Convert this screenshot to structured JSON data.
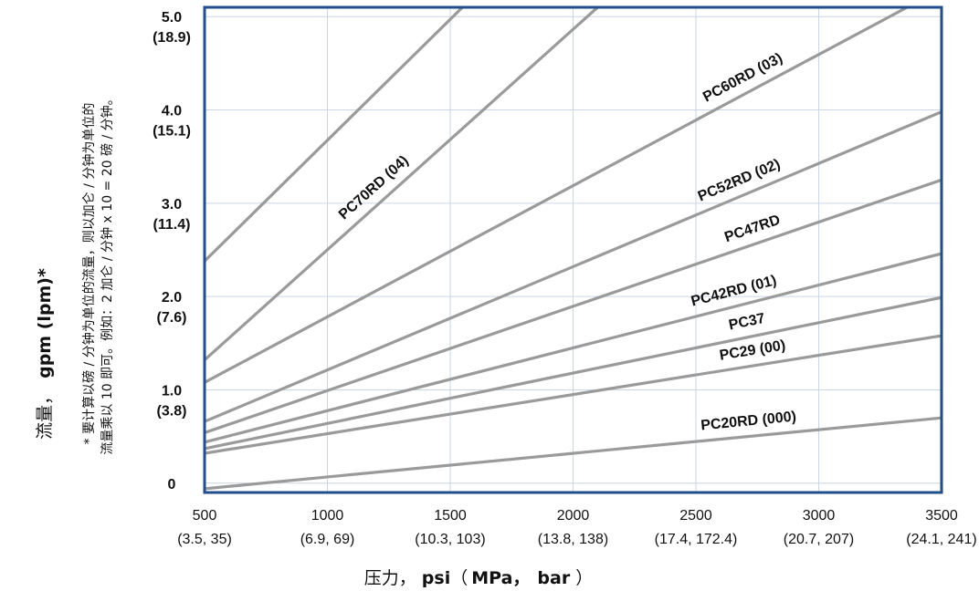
{
  "chart_data": {
    "type": "line",
    "xlabel": {
      "prefix": "压力，",
      "unit": "psi",
      "paren_open": "（",
      "unit2": "MPa，",
      "unit3": "bar",
      "paren_close": "）"
    },
    "ylabel": {
      "prefix": "流量，",
      "unit": "gpm (lpm)*"
    },
    "footnote": [
      "* 要计算以磅 / 分钟为单位的流量，则以加仑 / 分钟为单位的",
      "流量乘以 10 即可。例如：2 加仑 / 分钟 x 10 = 20 磅 / 分钟。"
    ],
    "x_ticks": [
      {
        "value": 500,
        "label": "500",
        "sub": "(3.5, 35)"
      },
      {
        "value": 1000,
        "label": "1000",
        "sub": "(6.9, 69)"
      },
      {
        "value": 1500,
        "label": "1500",
        "sub": "(10.3, 103)"
      },
      {
        "value": 2000,
        "label": "2000",
        "sub": "(13.8, 138)"
      },
      {
        "value": 2500,
        "label": "2500",
        "sub": "(17.4, 172.4)"
      },
      {
        "value": 3000,
        "label": "3000",
        "sub": "(20.7, 207)"
      },
      {
        "value": 3500,
        "label": "3500",
        "sub": "(24.1, 241)"
      }
    ],
    "y_ticks": [
      {
        "value": 0,
        "label": "0",
        "sub": ""
      },
      {
        "value": 1,
        "label": "1.0",
        "sub": "(3.8)"
      },
      {
        "value": 2,
        "label": "2.0",
        "sub": "(7.6)"
      },
      {
        "value": 3,
        "label": "3.0",
        "sub": "(11.4)"
      },
      {
        "value": 4,
        "label": "4.0",
        "sub": "(15.1)"
      },
      {
        "value": 5,
        "label": "5.0",
        "sub": "(18.9)"
      }
    ],
    "xlim": [
      500,
      3500
    ],
    "ylim": [
      -0.1,
      5.1
    ],
    "grid": true,
    "colors": {
      "frame": "#1f4e8c",
      "grid": "#c9d6e6",
      "line": "#9a9a9a"
    },
    "series": [
      {
        "name": "PC20RD (000)",
        "x": [
          500,
          3500
        ],
        "y": [
          -0.06,
          0.7
        ]
      },
      {
        "name": "PC29 (00)",
        "x": [
          500,
          3500
        ],
        "y": [
          0.32,
          1.58
        ]
      },
      {
        "name": "PC37",
        "x": [
          500,
          3500
        ],
        "y": [
          0.37,
          1.99
        ]
      },
      {
        "name": "PC42RD (01)",
        "x": [
          500,
          3500
        ],
        "y": [
          0.44,
          2.46
        ]
      },
      {
        "name": "PC47RD",
        "x": [
          500,
          3500
        ],
        "y": [
          0.54,
          3.25
        ]
      },
      {
        "name": "PC52RD (02)",
        "x": [
          500,
          3500
        ],
        "y": [
          0.66,
          3.98
        ]
      },
      {
        "name": "PC60RD (03)",
        "x": [
          500,
          3360
        ],
        "y": [
          1.08,
          5.1
        ]
      },
      {
        "name": "PC70RD (04)",
        "x": [
          500,
          2100
        ],
        "y": [
          1.32,
          5.1
        ]
      },
      {
        "name": "",
        "x": [
          500,
          1550
        ],
        "y": [
          2.38,
          5.1
        ]
      }
    ]
  }
}
